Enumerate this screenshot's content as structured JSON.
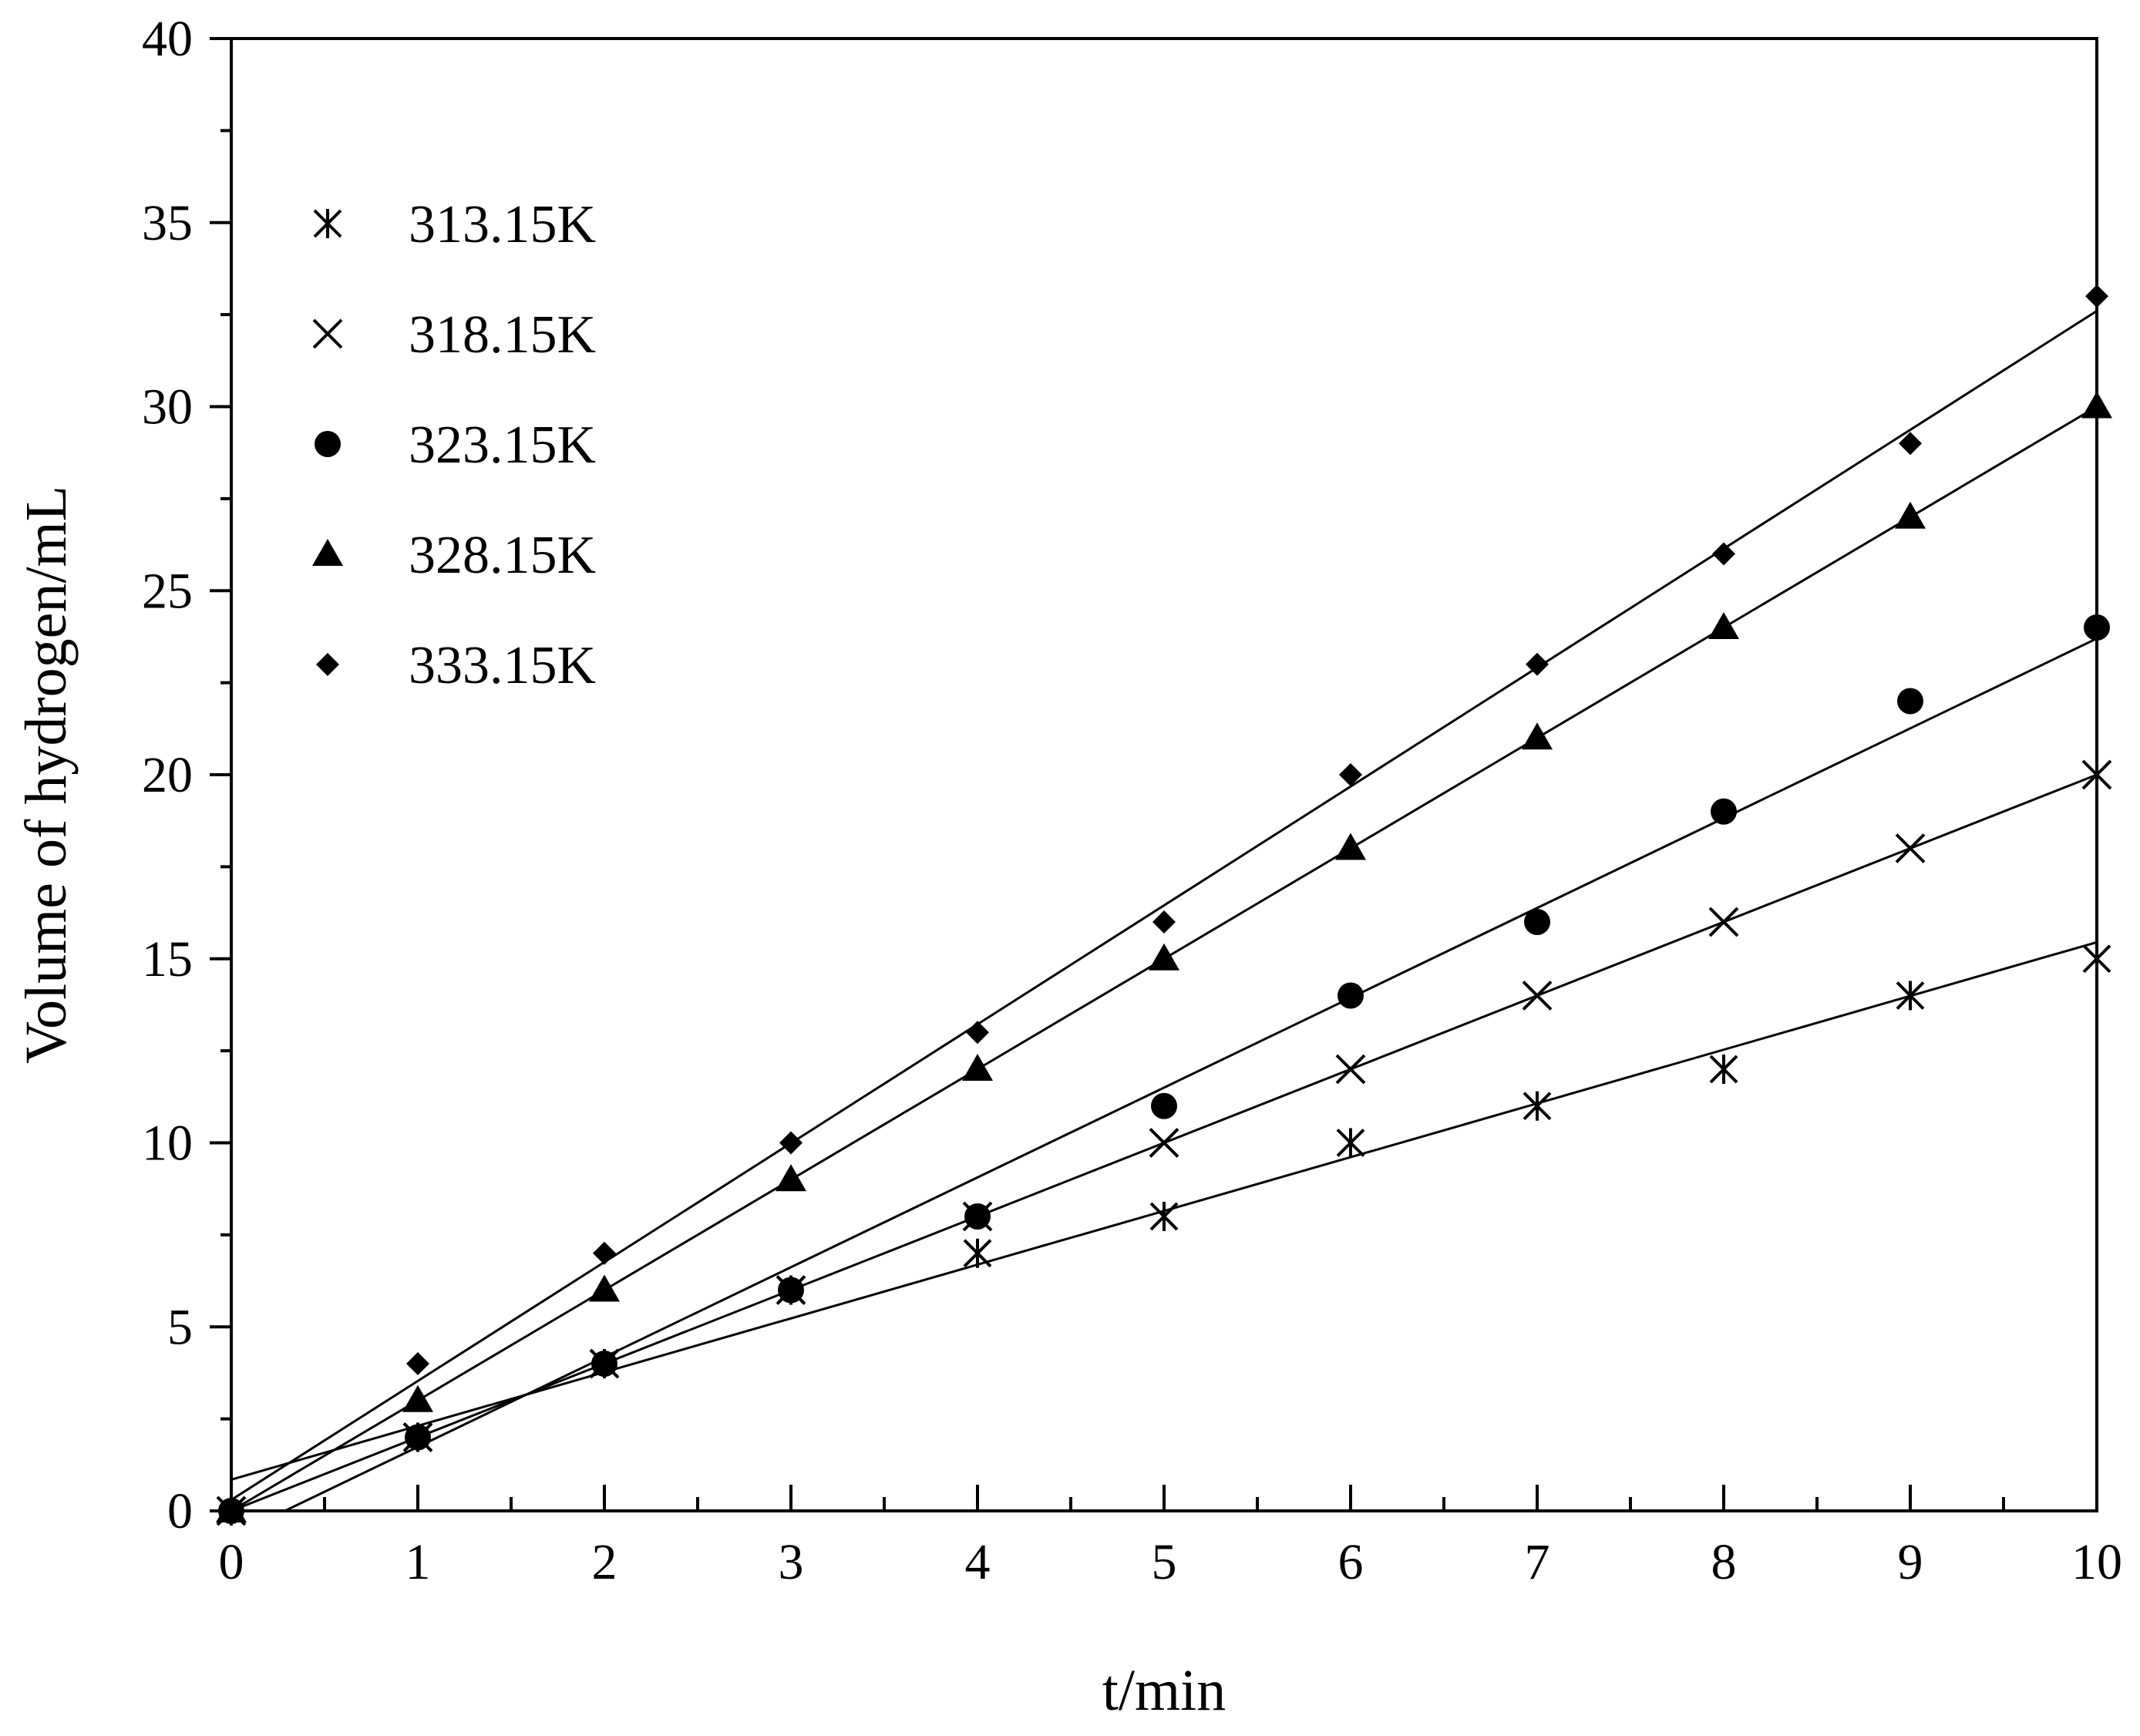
{
  "chart_data": {
    "type": "scatter",
    "title": "",
    "xlabel": "t/min",
    "ylabel": "Volume of hydrogen/mL",
    "xlim": [
      0,
      10
    ],
    "ylim": [
      0,
      40
    ],
    "x_ticks": [
      0,
      1,
      2,
      3,
      4,
      5,
      6,
      7,
      8,
      9,
      10
    ],
    "y_ticks": [
      0,
      5,
      10,
      15,
      20,
      25,
      30,
      35,
      40
    ],
    "x_tick_labels": [
      "0",
      "1",
      "2",
      "3",
      "4",
      "5",
      "6",
      "7",
      "8",
      "9",
      "10"
    ],
    "y_tick_labels": [
      "0",
      "5",
      "10",
      "15",
      "20",
      "25",
      "30",
      "35",
      "40"
    ],
    "grid": false,
    "legend_position": "top-left",
    "series": [
      {
        "name": "313.15K",
        "marker": "asterisk",
        "x": [
          0,
          1,
          2,
          3,
          4,
          5,
          6,
          7,
          8,
          9,
          10
        ],
        "y": [
          0,
          2,
          4,
          6,
          7,
          8,
          10,
          11,
          12,
          14,
          15
        ],
        "fit": [
          0.85,
          1.46
        ]
      },
      {
        "name": "318.15K",
        "marker": "cross",
        "x": [
          0,
          1,
          2,
          3,
          4,
          5,
          6,
          7,
          8,
          9,
          10
        ],
        "y": [
          0,
          2,
          4,
          6,
          8,
          10,
          12,
          14,
          16,
          18,
          20
        ],
        "fit": [
          0.0,
          2.0
        ]
      },
      {
        "name": "323.15K",
        "marker": "circle",
        "x": [
          0,
          1,
          2,
          3,
          4,
          5,
          6,
          7,
          8,
          9,
          10
        ],
        "y": [
          0,
          2,
          4,
          6,
          8,
          11,
          14,
          16,
          19,
          22,
          24
        ],
        "fit": [
          -0.7,
          2.44
        ]
      },
      {
        "name": "328.15K",
        "marker": "triangle",
        "x": [
          0,
          1,
          2,
          3,
          4,
          5,
          6,
          7,
          8,
          9,
          10
        ],
        "y": [
          0,
          3,
          6,
          9,
          12,
          15,
          18,
          21,
          24,
          27,
          30
        ],
        "fit": [
          0.0,
          3.0
        ]
      },
      {
        "name": "333.15K",
        "marker": "diamond",
        "x": [
          0,
          1,
          2,
          3,
          4,
          5,
          6,
          7,
          8,
          9,
          10
        ],
        "y": [
          0,
          4,
          7,
          10,
          13,
          16,
          20,
          23,
          26,
          29,
          33
        ],
        "fit": [
          0.3,
          3.23
        ]
      }
    ]
  }
}
